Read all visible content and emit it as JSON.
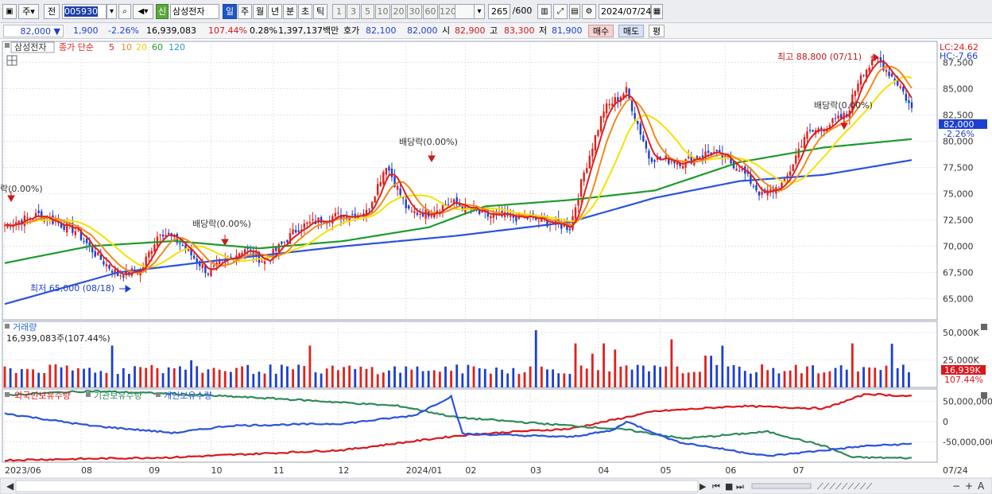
{
  "toolbar": {
    "market": "주",
    "period_type": "전",
    "stock_code": "005930",
    "stock_name": "삼성전자",
    "stock_badge": "신",
    "intervals": [
      "일",
      "주",
      "월",
      "년",
      "분",
      "초",
      "틱"
    ],
    "active_interval": "일",
    "minutes": [
      "1",
      "3",
      "5",
      "10",
      "20",
      "30",
      "60",
      "120"
    ],
    "count": "265",
    "count_max": "/600",
    "date": "2024/07/24"
  },
  "quote": {
    "price": "82,000",
    "change": "1,900",
    "change_pct": "-2.26%",
    "volume": "16,939,083",
    "volume_ratio": "107.44%",
    "turnover": "0.28%",
    "amount": "1,397,137백만",
    "bid_label": "호가",
    "bid1": "82,100",
    "bid2": "82,000",
    "open_label": "시",
    "open": "82,900",
    "high_label": "고",
    "high": "83,300",
    "low_label": "저",
    "low": "81,900",
    "buy_label": "매수",
    "sell_label": "매도",
    "flat_label": "평"
  },
  "colors": {
    "up": "#e0201c",
    "down": "#1c3fd0",
    "ma5": "#e0201c",
    "ma10": "#f08a1c",
    "ma20": "#f5e200",
    "ma60": "#1f9a2c",
    "ma120": "#2a52e0",
    "foreign": "#d8181c",
    "institution": "#2f8a5a",
    "individual": "#2a52e0"
  },
  "chart_data": [
    {
      "type": "candlestick",
      "title": "삼성전자",
      "legend": {
        "label": "종가 단순",
        "periods": [
          "5",
          "10",
          "20",
          "60",
          "120"
        ],
        "placement": "top-left"
      },
      "x_ticks": [
        "2023/06",
        "08",
        "09",
        "10",
        "11",
        "12",
        "2024/01",
        "02",
        "03",
        "04",
        "05",
        "06",
        "07",
        "07/24"
      ],
      "y_ticks": [
        "87,500",
        "85,000",
        "82,500",
        "80,000",
        "77,500",
        "75,000",
        "72,500",
        "70,000",
        "67,500",
        "65,000"
      ],
      "ylim": [
        63000,
        89500
      ],
      "current_price_label": "82,000",
      "current_change_label": "-2.26%",
      "lc_label": "LC:24.62",
      "hc_label": "HC:-7.66",
      "annotations": {
        "high": "최고 88,800 (07/11)",
        "low": "최저 65,000 (08/18)",
        "dividends": [
          "락(0.00%)",
          "배당락(0.00%)",
          "배당락(0.00%)",
          "배당락(0.00%)"
        ]
      },
      "anchors": [
        [
          0,
          72000
        ],
        [
          12,
          73000
        ],
        [
          25,
          71500
        ],
        [
          33,
          69000
        ],
        [
          40,
          67300
        ],
        [
          48,
          67700
        ],
        [
          55,
          71500
        ],
        [
          62,
          70300
        ],
        [
          72,
          67500
        ],
        [
          85,
          69800
        ],
        [
          92,
          68500
        ],
        [
          104,
          71800
        ],
        [
          115,
          72800
        ],
        [
          128,
          73200
        ],
        [
          135,
          77800
        ],
        [
          143,
          73200
        ],
        [
          150,
          73200
        ],
        [
          158,
          74200
        ],
        [
          170,
          72900
        ],
        [
          185,
          72700
        ],
        [
          200,
          71800
        ],
        [
          205,
          77000
        ],
        [
          212,
          83000
        ],
        [
          220,
          84800
        ],
        [
          228,
          78500
        ],
        [
          240,
          78000
        ],
        [
          250,
          79000
        ],
        [
          260,
          77500
        ],
        [
          268,
          74800
        ],
        [
          276,
          76000
        ],
        [
          283,
          80500
        ],
        [
          291,
          81500
        ],
        [
          298,
          82500
        ],
        [
          303,
          86500
        ],
        [
          309,
          87800
        ],
        [
          313,
          86500
        ],
        [
          317,
          85200
        ],
        [
          321,
          83000
        ]
      ],
      "ma60_anchors": [
        [
          0,
          68400
        ],
        [
          30,
          70000
        ],
        [
          60,
          70500
        ],
        [
          90,
          69800
        ],
        [
          120,
          70500
        ],
        [
          150,
          71800
        ],
        [
          170,
          73800
        ],
        [
          200,
          74400
        ],
        [
          230,
          75300
        ],
        [
          260,
          78000
        ],
        [
          290,
          79400
        ],
        [
          321,
          80200
        ]
      ],
      "ma120_anchors": [
        [
          0,
          64500
        ],
        [
          40,
          67500
        ],
        [
          80,
          68800
        ],
        [
          120,
          70000
        ],
        [
          160,
          71000
        ],
        [
          200,
          72300
        ],
        [
          230,
          74600
        ],
        [
          260,
          76200
        ],
        [
          290,
          76800
        ],
        [
          321,
          78200
        ]
      ]
    },
    {
      "type": "bar",
      "title": "거래량",
      "value_label": "16,939,083주(107.44%)",
      "y_ticks": [
        "50,000K",
        "25,000K"
      ],
      "current_label": "16,939K",
      "current_ratio": "107.44%"
    },
    {
      "type": "line",
      "title": "외국인보유수량 · 기관보유수량 · 개인보유수량",
      "series": [
        {
          "name": "외국인보유수량",
          "anchors": [
            [
              0,
              -95000000
            ],
            [
              60,
              -88000000
            ],
            [
              120,
              -70000000
            ],
            [
              160,
              -35000000
            ],
            [
              180,
              -25000000
            ],
            [
              200,
              -18000000
            ],
            [
              230,
              25000000
            ],
            [
              260,
              38000000
            ],
            [
              290,
              32000000
            ],
            [
              305,
              68000000
            ],
            [
              321,
              62000000
            ]
          ]
        },
        {
          "name": "기관보유수량",
          "anchors": [
            [
              0,
              65000000
            ],
            [
              30,
              75000000
            ],
            [
              60,
              68000000
            ],
            [
              100,
              55000000
            ],
            [
              140,
              38000000
            ],
            [
              160,
              10000000
            ],
            [
              200,
              -10000000
            ],
            [
              220,
              -20000000
            ],
            [
              240,
              -42000000
            ],
            [
              270,
              -25000000
            ],
            [
              290,
              -60000000
            ],
            [
              300,
              -88000000
            ],
            [
              321,
              -90000000
            ]
          ]
        },
        {
          "name": "개인보유수량",
          "anchors": [
            [
              0,
              20000000
            ],
            [
              30,
              -10000000
            ],
            [
              60,
              -28000000
            ],
            [
              80,
              -10000000
            ],
            [
              120,
              -5000000
            ],
            [
              145,
              15000000
            ],
            [
              158,
              62000000
            ],
            [
              162,
              -30000000
            ],
            [
              200,
              -38000000
            ],
            [
              215,
              -22000000
            ],
            [
              220,
              0
            ],
            [
              238,
              -50000000
            ],
            [
              270,
              -85000000
            ],
            [
              305,
              -60000000
            ],
            [
              321,
              -55000000
            ]
          ]
        }
      ],
      "y_ticks": [
        "50,000,000",
        "0",
        "-50,000,000"
      ],
      "ylim": [
        -100000000,
        80000000
      ]
    }
  ]
}
